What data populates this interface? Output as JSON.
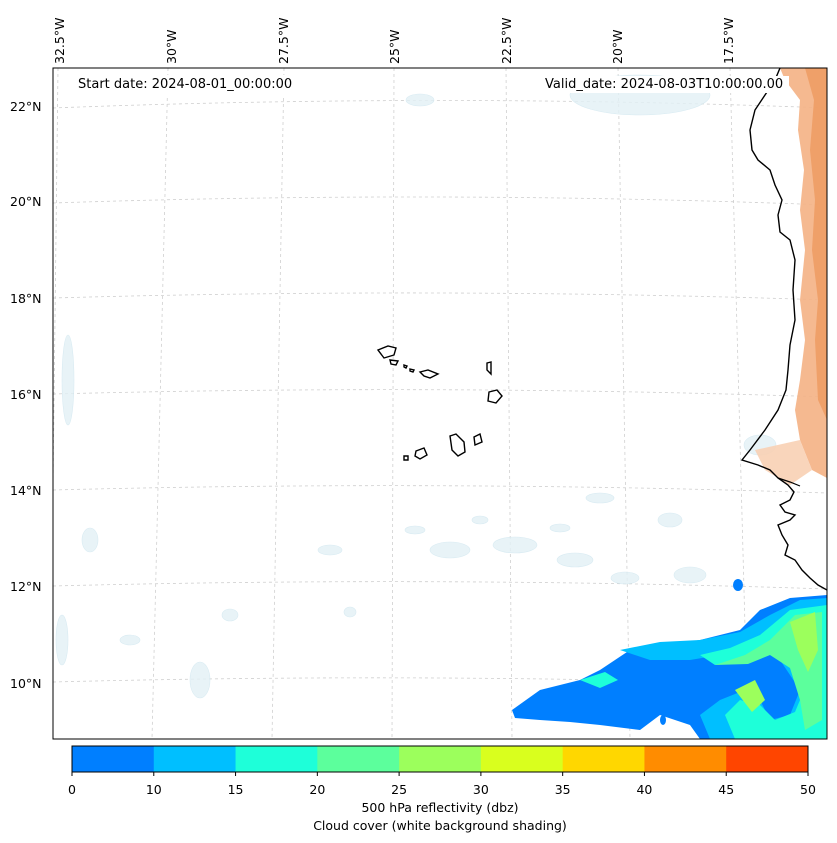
{
  "info": {
    "start_date": "Start date: 2024-08-01_00:00:00",
    "valid_date": "Valid_date: 2024-08-03T10:00:00.00"
  },
  "lat_labels": [
    "22°N",
    "20°N",
    "18°N",
    "16°N",
    "14°N",
    "12°N",
    "10°N"
  ],
  "lon_labels": [
    "32.5°W",
    "30°W",
    "27.5°W",
    "25°W",
    "22.5°W",
    "20°W",
    "17.5°W"
  ],
  "colorbar": {
    "ticks": [
      "0",
      "10",
      "15",
      "20",
      "25",
      "30",
      "35",
      "40",
      "45",
      "50"
    ],
    "colors": [
      "#007fff",
      "#00bfff",
      "#1effd9",
      "#5cff9c",
      "#9cff5c",
      "#d9ff1e",
      "#ffd700",
      "#ff8c00",
      "#ff4500"
    ],
    "label": "500 hPa reflectivity (dbz)",
    "sublabel": "Cloud cover (white background shading)"
  }
}
